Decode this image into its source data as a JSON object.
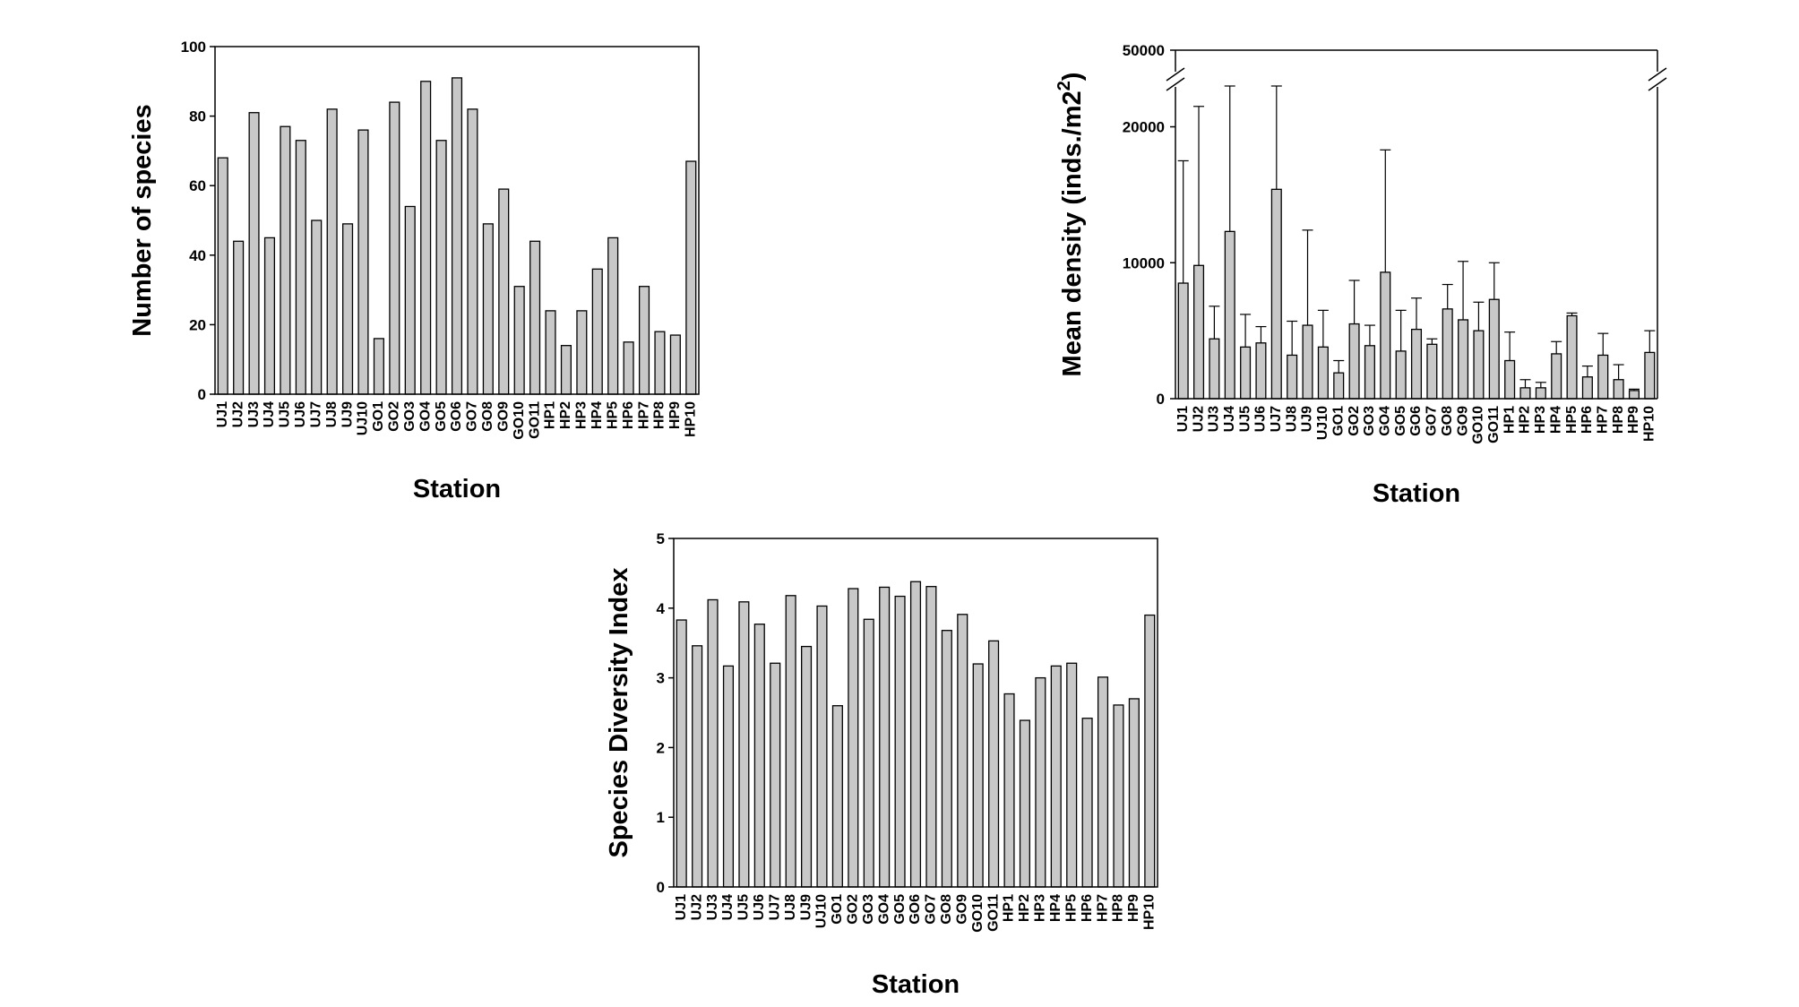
{
  "colors": {
    "bar_fill": "#c8c8c8",
    "bar_stroke": "#000000",
    "axis": "#000000",
    "background": "#ffffff"
  },
  "chart_data": [
    {
      "type": "bar",
      "categories": [
        "UJ1",
        "UJ2",
        "UJ3",
        "UJ4",
        "UJ5",
        "UJ6",
        "UJ7",
        "UJ8",
        "UJ9",
        "UJ10",
        "GO1",
        "GO2",
        "GO3",
        "GO4",
        "GO5",
        "GO6",
        "GO7",
        "GO8",
        "GO9",
        "GO10",
        "GO11",
        "HP1",
        "HP2",
        "HP3",
        "HP4",
        "HP5",
        "HP6",
        "HP7",
        "HP8",
        "HP9",
        "HP10"
      ],
      "values": [
        68,
        44,
        81,
        45,
        77,
        73,
        50,
        82,
        49,
        76,
        16,
        84,
        54,
        90,
        73,
        91,
        82,
        49,
        59,
        31,
        44,
        24,
        14,
        24,
        36,
        45,
        15,
        31,
        18,
        17,
        67
      ],
      "xlabel": "Station",
      "ylabel": "Number of species",
      "ylim": [
        0,
        100
      ],
      "yticks": [
        "0",
        "20",
        "40",
        "60",
        "80",
        "100"
      ],
      "grid": false,
      "legend": "none"
    },
    {
      "type": "bar",
      "categories": [
        "UJ1",
        "UJ2",
        "UJ3",
        "UJ4",
        "UJ5",
        "UJ6",
        "UJ7",
        "UJ8",
        "UJ9",
        "UJ10",
        "GO1",
        "GO2",
        "GO3",
        "GO4",
        "GO5",
        "GO6",
        "GO7",
        "GO8",
        "GO9",
        "GO10",
        "GO11",
        "HP1",
        "HP2",
        "HP3",
        "HP4",
        "HP5",
        "HP6",
        "HP7",
        "HP8",
        "HP9",
        "HP10"
      ],
      "values": [
        8500,
        9800,
        4400,
        12300,
        3800,
        4100,
        15400,
        3200,
        5400,
        3800,
        1900,
        5500,
        3900,
        9300,
        3500,
        5100,
        4000,
        6600,
        5800,
        5000,
        7300,
        2800,
        800,
        800,
        3300,
        6100,
        1600,
        3200,
        1400,
        600,
        3400
      ],
      "error": [
        9000,
        11700,
        2400,
        14300,
        2400,
        1200,
        17000,
        2500,
        7000,
        2700,
        900,
        3200,
        1500,
        9000,
        3000,
        2300,
        400,
        1800,
        4300,
        2100,
        2700,
        2100,
        600,
        400,
        900,
        200,
        800,
        1600,
        1100,
        100,
        1600
      ],
      "xlabel": "Station",
      "ylabel": "Mean density (inds./m2)",
      "ylim": [
        0,
        50000
      ],
      "axis_break": [
        23000,
        48000
      ],
      "yticks": [
        "0",
        "10000",
        "20000",
        "50000"
      ],
      "grid": false,
      "legend": "none"
    },
    {
      "type": "bar",
      "categories": [
        "UJ1",
        "UJ2",
        "UJ3",
        "UJ4",
        "UJ5",
        "UJ6",
        "UJ7",
        "UJ8",
        "UJ9",
        "UJ10",
        "GO1",
        "GO2",
        "GO3",
        "GO4",
        "GO5",
        "GO6",
        "GO7",
        "GO8",
        "GO9",
        "GO10",
        "GO11",
        "HP1",
        "HP2",
        "HP3",
        "HP4",
        "HP5",
        "HP6",
        "HP7",
        "HP8",
        "HP9",
        "HP10"
      ],
      "values": [
        3.83,
        3.46,
        4.12,
        3.17,
        4.09,
        3.77,
        3.21,
        4.18,
        3.45,
        4.03,
        2.6,
        4.28,
        3.84,
        4.3,
        4.17,
        4.38,
        4.31,
        3.68,
        3.91,
        3.2,
        3.53,
        2.77,
        2.39,
        3.0,
        3.17,
        3.21,
        2.42,
        3.01,
        2.61,
        2.7,
        3.9
      ],
      "xlabel": "Station",
      "ylabel": "Species Diversity Index",
      "ylim": [
        0,
        5
      ],
      "yticks": [
        "0",
        "1",
        "2",
        "3",
        "4",
        "5"
      ],
      "grid": false,
      "legend": "none"
    }
  ]
}
